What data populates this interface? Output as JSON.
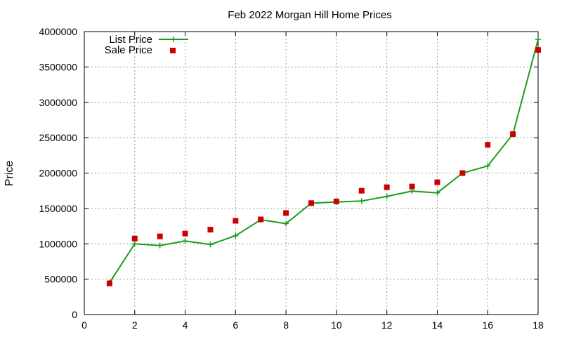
{
  "chart_data": {
    "type": "line",
    "title": "Feb 2022 Morgan Hill Home Prices",
    "xlabel": "",
    "ylabel": "Price",
    "xlim": [
      0,
      18
    ],
    "ylim": [
      0,
      4000000
    ],
    "xticks": [
      0,
      2,
      4,
      6,
      8,
      10,
      12,
      14,
      16,
      18
    ],
    "yticks": [
      0,
      500000,
      1000000,
      1500000,
      2000000,
      2500000,
      3000000,
      3500000,
      4000000
    ],
    "grid": true,
    "legend_position": "top-left",
    "x": [
      1,
      2,
      3,
      4,
      5,
      6,
      7,
      8,
      9,
      10,
      11,
      12,
      13,
      14,
      15,
      16,
      17,
      18
    ],
    "series": [
      {
        "name": "List Price",
        "style": "line-with-plus-markers",
        "color": "#1a9e1a",
        "values": [
          450000,
          1000000,
          975000,
          1040000,
          990000,
          1115000,
          1340000,
          1285000,
          1575000,
          1590000,
          1605000,
          1670000,
          1745000,
          1720000,
          2000000,
          2100000,
          2550000,
          3890000
        ]
      },
      {
        "name": "Sale Price",
        "style": "square-points",
        "color": "#cc0000",
        "values": [
          440000,
          1075000,
          1105000,
          1145000,
          1200000,
          1325000,
          1345000,
          1435000,
          1575000,
          1600000,
          1750000,
          1800000,
          1810000,
          1870000,
          2000000,
          2400000,
          2550000,
          3740000
        ]
      }
    ]
  }
}
